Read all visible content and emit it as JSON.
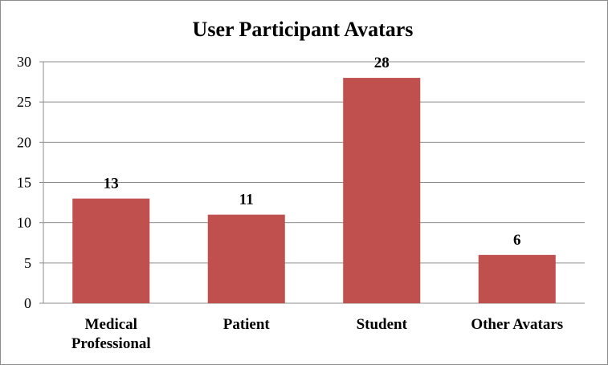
{
  "chart_data": {
    "type": "bar",
    "title": "User Participant Avatars",
    "categories": [
      "Medical Professional",
      "Patient",
      "Student",
      "Other Avatars"
    ],
    "category_lines": [
      [
        "Medical",
        "Professional"
      ],
      [
        "Patient"
      ],
      [
        "Student"
      ],
      [
        "Other Avatars"
      ]
    ],
    "values": [
      13,
      11,
      28,
      6
    ],
    "ylim": [
      0,
      30
    ],
    "yticks": [
      0,
      5,
      10,
      15,
      20,
      25,
      30
    ],
    "grid": true,
    "legend": "none",
    "bar_color": "#c0504d"
  }
}
